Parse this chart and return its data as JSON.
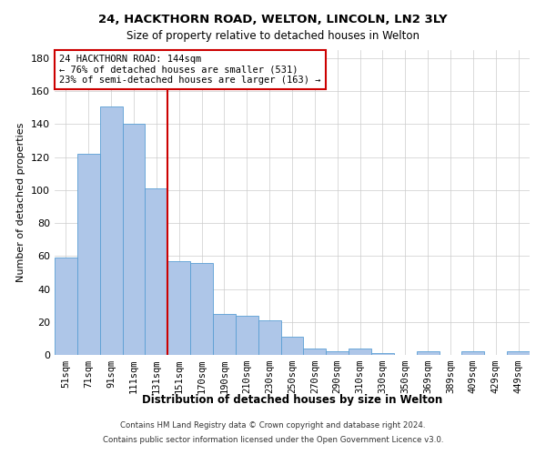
{
  "title_line1": "24, HACKTHORN ROAD, WELTON, LINCOLN, LN2 3LY",
  "title_line2": "Size of property relative to detached houses in Welton",
  "xlabel": "Distribution of detached houses by size in Welton",
  "ylabel": "Number of detached properties",
  "categories": [
    "51sqm",
    "71sqm",
    "91sqm",
    "111sqm",
    "131sqm",
    "151sqm",
    "170sqm",
    "190sqm",
    "210sqm",
    "230sqm",
    "250sqm",
    "270sqm",
    "290sqm",
    "310sqm",
    "330sqm",
    "350sqm",
    "369sqm",
    "389sqm",
    "409sqm",
    "429sqm",
    "449sqm"
  ],
  "values": [
    59,
    122,
    151,
    140,
    101,
    57,
    56,
    25,
    24,
    21,
    11,
    4,
    2,
    4,
    1,
    0,
    2,
    0,
    2,
    0,
    2
  ],
  "bar_color": "#aec6e8",
  "bar_edge_color": "#5a9fd4",
  "vline_x_index": 5,
  "vline_color": "#cc0000",
  "annotation_line1": "24 HACKTHORN ROAD: 144sqm",
  "annotation_line2": "← 76% of detached houses are smaller (531)",
  "annotation_line3": "23% of semi-detached houses are larger (163) →",
  "annotation_box_color": "#cc0000",
  "ylim": [
    0,
    185
  ],
  "yticks": [
    0,
    20,
    40,
    60,
    80,
    100,
    120,
    140,
    160,
    180
  ],
  "footer_line1": "Contains HM Land Registry data © Crown copyright and database right 2024.",
  "footer_line2": "Contains public sector information licensed under the Open Government Licence v3.0.",
  "background_color": "#ffffff",
  "grid_color": "#cccccc"
}
